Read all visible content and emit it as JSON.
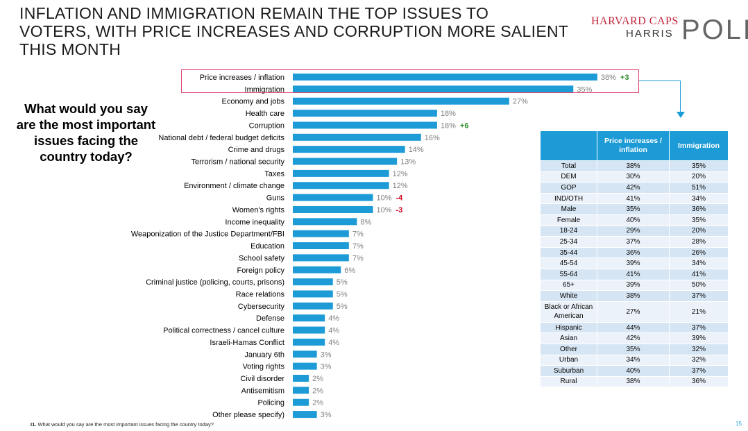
{
  "header": {
    "title_lines": [
      "INFLATION AND IMMIGRATION REMAIN THE TOP ISSUES TO",
      "VOTERS, WITH PRICE INCREASES AND CORRUPTION MORE SALIENT",
      "THIS MONTH"
    ],
    "logo": {
      "line1": "HARVARD CAPS",
      "line2": "HARRIS",
      "line3": "POLL"
    }
  },
  "question": {
    "lines": [
      "What would you say",
      "are the most important",
      "issues facing the",
      "country today?"
    ]
  },
  "colors": {
    "bar": "#1c9bd7",
    "highlight_border": "#e0456d",
    "increase": "#2e8b2e",
    "decrease": "#d0021b",
    "value_label": "#7f7f7f"
  },
  "chart_data": {
    "type": "bar",
    "orientation": "horizontal",
    "categories": [
      "Price increases / inflation",
      "Immigration",
      "Economy and jobs",
      "Health care",
      "Corruption",
      "National debt / federal budget deficits",
      "Crime and drugs",
      "Terrorism / national security",
      "Taxes",
      "Environment / climate change",
      "Guns",
      "Women's rights",
      "Income inequality",
      "Weaponization of the Justice Department/FBI",
      "Education",
      "School safety",
      "Foreign policy",
      "Criminal justice (policing, courts, prisons)",
      "Race relations",
      "Cybersecurity",
      "Defense",
      "Political correctness / cancel culture",
      "Israeli-Hamas Conflict",
      "January 6th",
      "Voting rights",
      "Civil disorder",
      "Antisemitism",
      "Policing",
      "Other please specify)"
    ],
    "values": [
      38,
      35,
      27,
      18,
      18,
      16,
      14,
      13,
      12,
      12,
      10,
      10,
      8,
      7,
      7,
      7,
      6,
      5,
      5,
      5,
      4,
      4,
      4,
      3,
      3,
      2,
      2,
      2,
      3
    ],
    "value_labels": [
      "38%",
      "35%",
      "27%",
      "18%",
      "18%",
      "16%",
      "14%",
      "13%",
      "12%",
      "12%",
      "10%",
      "10%",
      "8%",
      "7%",
      "7%",
      "7%",
      "6%",
      "5%",
      "5%",
      "5%",
      "4%",
      "4%",
      "4%",
      "3%",
      "3%",
      "2%",
      "2%",
      "2%",
      "3%"
    ],
    "changes": [
      {
        "index": 0,
        "label": "+3",
        "direction": "up"
      },
      {
        "index": 4,
        "label": "+6",
        "direction": "up"
      },
      {
        "index": 10,
        "label": "-4",
        "direction": "down"
      },
      {
        "index": 11,
        "label": "-3",
        "direction": "down"
      }
    ],
    "highlighted": [
      0,
      1
    ],
    "xlim": [
      0,
      40
    ],
    "grid": false,
    "legend": "none"
  },
  "crosstab": {
    "headers": [
      "",
      "Price increases / inflation",
      "Immigration"
    ],
    "rows": [
      [
        "Total",
        "38%",
        "35%"
      ],
      [
        "DEM",
        "30%",
        "20%"
      ],
      [
        "GOP",
        "42%",
        "51%"
      ],
      [
        "IND/OTH",
        "41%",
        "34%"
      ],
      [
        "Male",
        "35%",
        "36%"
      ],
      [
        "Female",
        "40%",
        "35%"
      ],
      [
        "18-24",
        "29%",
        "20%"
      ],
      [
        "25-34",
        "37%",
        "28%"
      ],
      [
        "35-44",
        "36%",
        "26%"
      ],
      [
        "45-54",
        "39%",
        "34%"
      ],
      [
        "55-64",
        "41%",
        "41%"
      ],
      [
        "65+",
        "39%",
        "50%"
      ],
      [
        "White",
        "38%",
        "37%"
      ],
      [
        "Black or African American",
        "27%",
        "21%"
      ],
      [
        "Hispanic",
        "44%",
        "37%"
      ],
      [
        "Asian",
        "42%",
        "39%"
      ],
      [
        "Other",
        "35%",
        "32%"
      ],
      [
        "Urban",
        "34%",
        "32%"
      ],
      [
        "Suburban",
        "40%",
        "37%"
      ],
      [
        "Rural",
        "38%",
        "36%"
      ]
    ]
  },
  "footer": {
    "code": "I1.",
    "note": "What would you say are the most important issues facing the country today?",
    "page_number": "15"
  }
}
